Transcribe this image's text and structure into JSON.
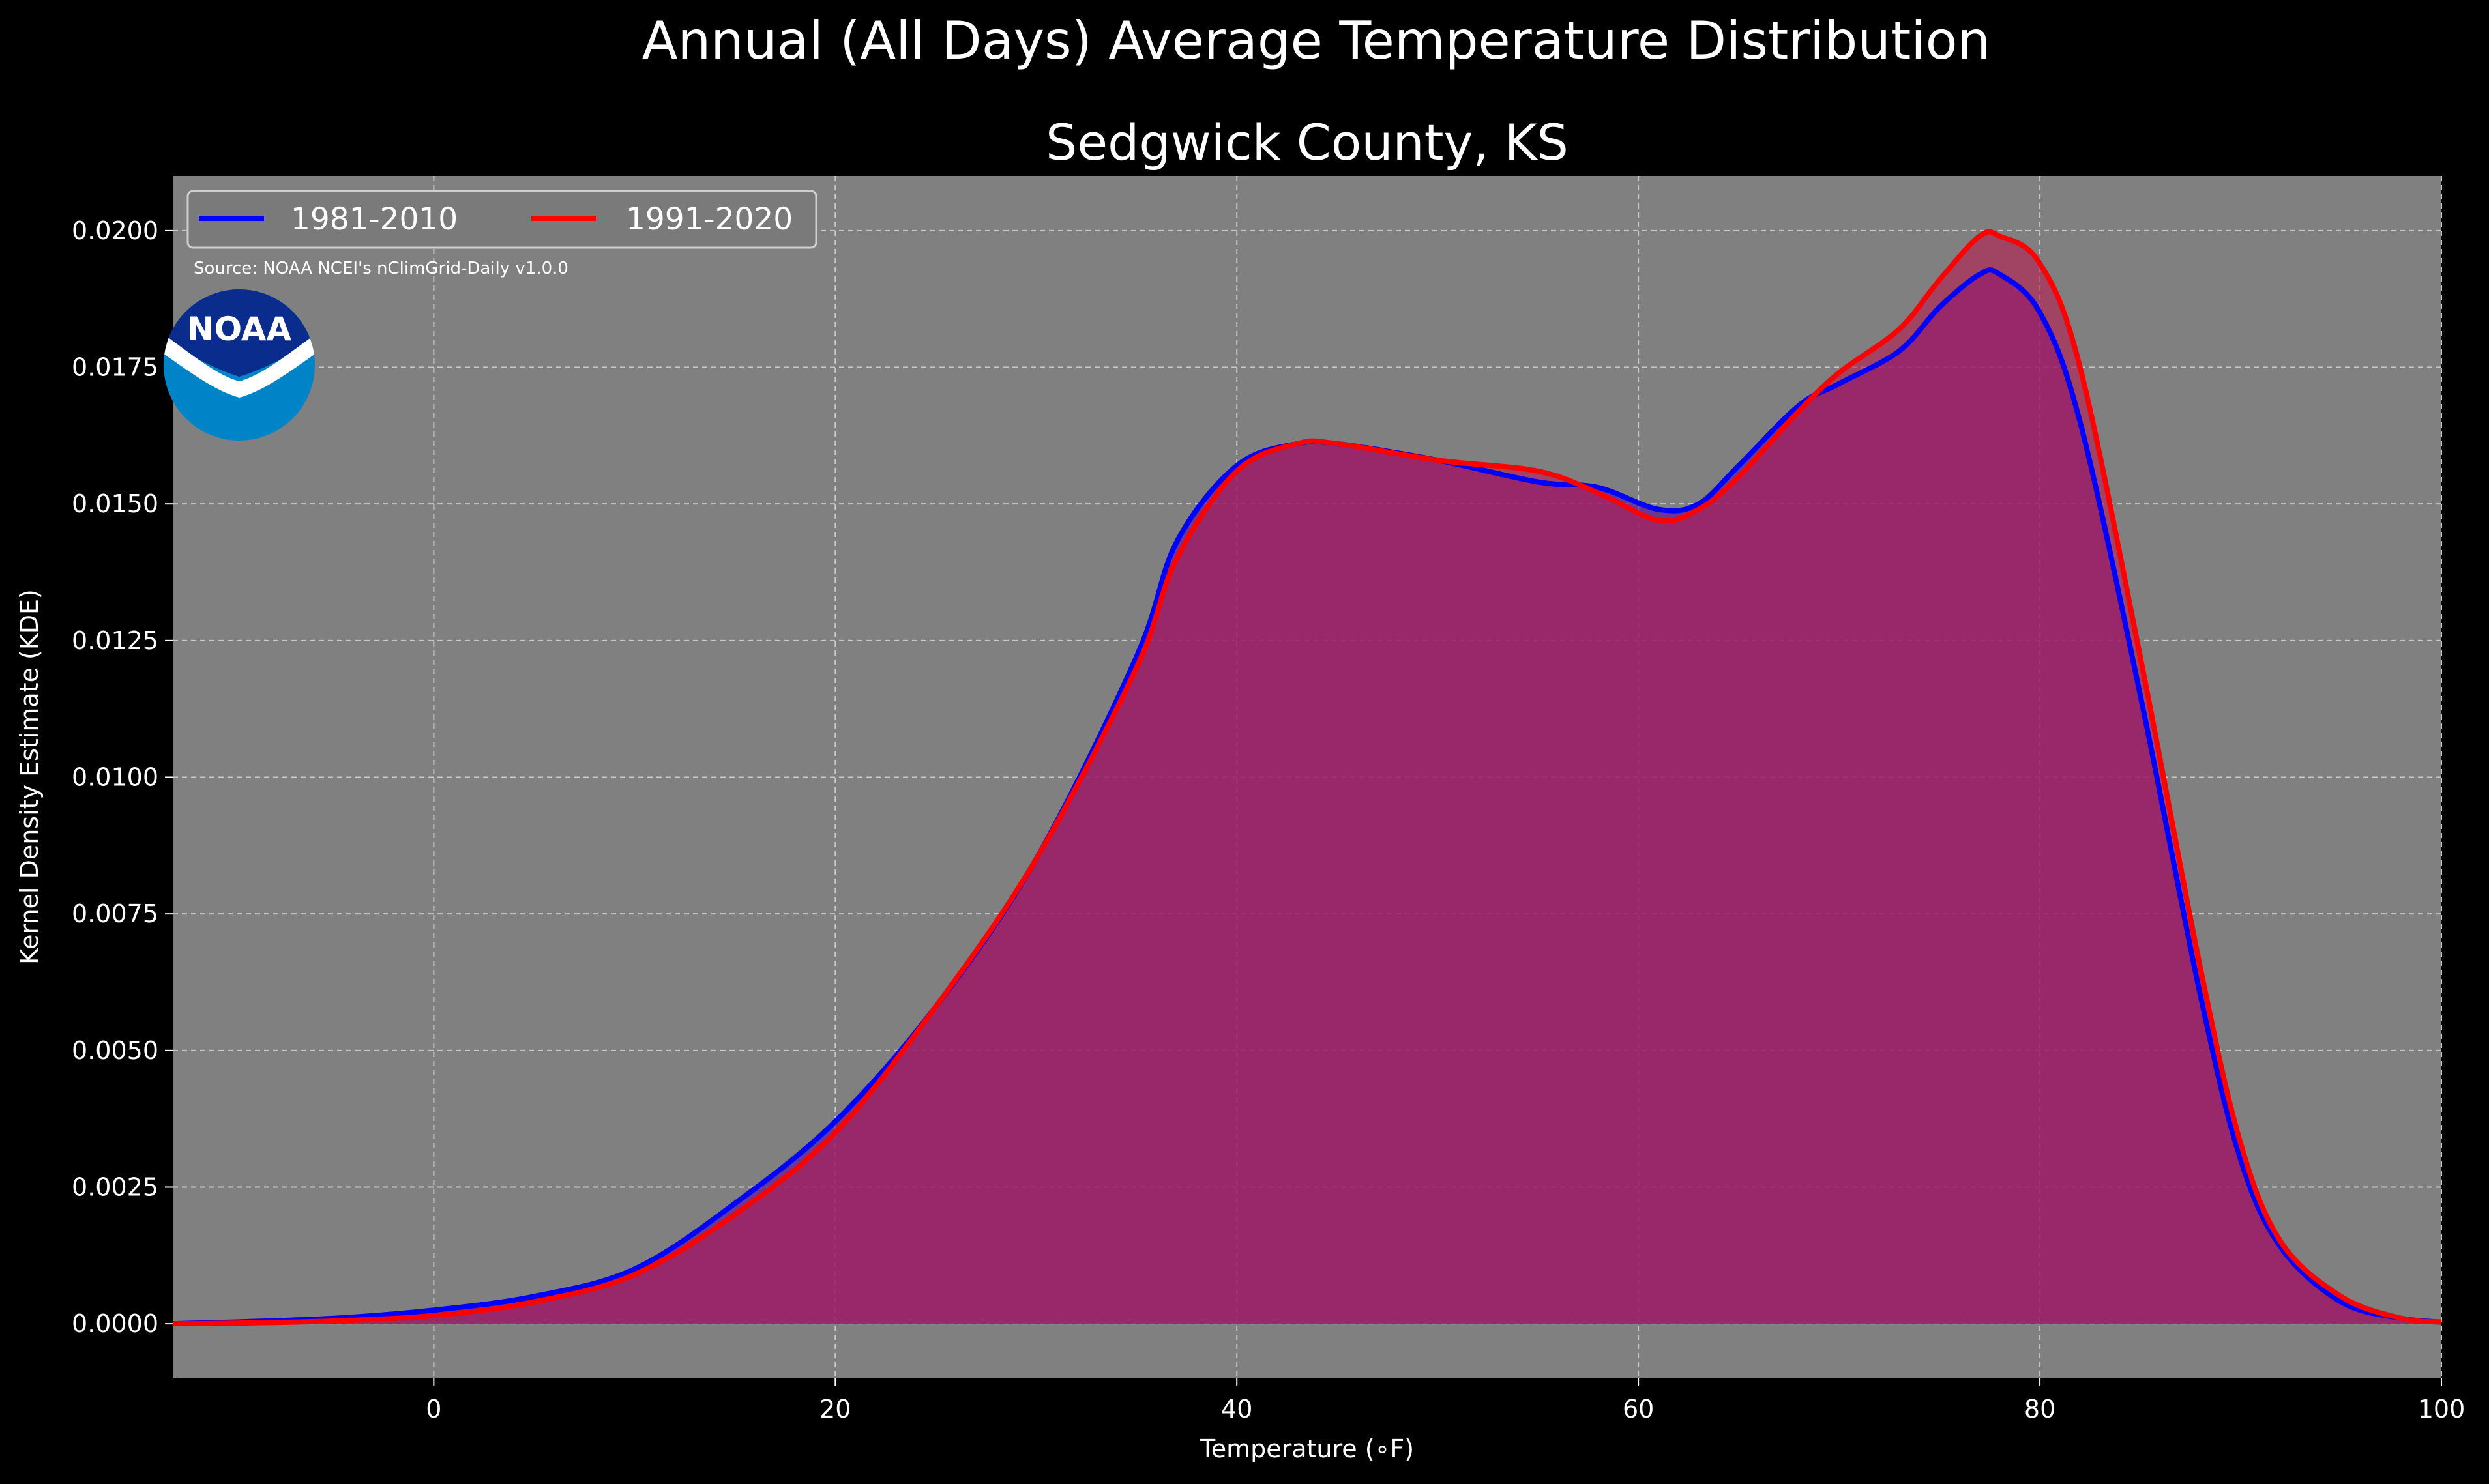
{
  "chart_data": {
    "type": "area",
    "title": "Annual (All Days) Average Temperature Distribution",
    "subtitle": "Sedgwick County, KS",
    "xlabel": "Temperature (∘F)",
    "ylabel": "Kernel Density Estimate (KDE)",
    "xlim": [
      -13,
      100
    ],
    "ylim": [
      -0.001,
      0.021
    ],
    "xticks": [
      0,
      20,
      40,
      60,
      80,
      100
    ],
    "yticks": [
      0.0,
      0.0025,
      0.005,
      0.0075,
      0.01,
      0.0125,
      0.015,
      0.0175,
      0.02
    ],
    "ytick_format": 4,
    "grid": true,
    "legend_position": "top-left",
    "source": "Source: NOAA NCEI's nClimGrid-Daily v1.0.0",
    "logo": {
      "name": "noaa-logo-icon",
      "text": "NOAA"
    },
    "series": [
      {
        "name": "1981-2010",
        "color": "#0000ff",
        "fill": "#5a0aa0",
        "x": [
          -13,
          -10,
          -5,
          0,
          5,
          10,
          15,
          20,
          25,
          30,
          35,
          37,
          40,
          43,
          45,
          50,
          55,
          58,
          61,
          63,
          65,
          68,
          70,
          73,
          75,
          77,
          78,
          80,
          82,
          85,
          88,
          90,
          92,
          95,
          98,
          100
        ],
        "y": [
          0.0,
          3e-05,
          0.0001,
          0.00025,
          0.0005,
          0.001,
          0.0022,
          0.0037,
          0.0058,
          0.0085,
          0.0122,
          0.0143,
          0.0157,
          0.0161,
          0.0161,
          0.0158,
          0.0154,
          0.0153,
          0.0149,
          0.015,
          0.0157,
          0.0168,
          0.0172,
          0.0178,
          0.0186,
          0.0192,
          0.0192,
          0.0185,
          0.0165,
          0.0115,
          0.006,
          0.003,
          0.0014,
          0.0004,
          0.0001,
          3e-05
        ]
      },
      {
        "name": "1991-2020",
        "color": "#ff0000",
        "fill": "#b41e50",
        "x": [
          -13,
          -10,
          -5,
          0,
          5,
          10,
          15,
          20,
          25,
          30,
          35,
          37,
          40,
          43,
          45,
          50,
          55,
          58,
          61,
          63,
          65,
          68,
          70,
          73,
          75,
          77,
          78,
          80,
          82,
          85,
          88,
          90,
          92,
          95,
          98,
          100
        ],
        "y": [
          0.0,
          1e-05,
          5e-05,
          0.00015,
          0.0004,
          0.0009,
          0.002,
          0.0035,
          0.0058,
          0.0085,
          0.012,
          0.014,
          0.0156,
          0.0161,
          0.0161,
          0.0158,
          0.0156,
          0.0152,
          0.0147,
          0.0149,
          0.0155,
          0.0167,
          0.0174,
          0.0182,
          0.0191,
          0.0199,
          0.0199,
          0.0194,
          0.0175,
          0.0122,
          0.0065,
          0.0033,
          0.0015,
          0.0005,
          0.0001,
          3e-05
        ]
      }
    ]
  }
}
